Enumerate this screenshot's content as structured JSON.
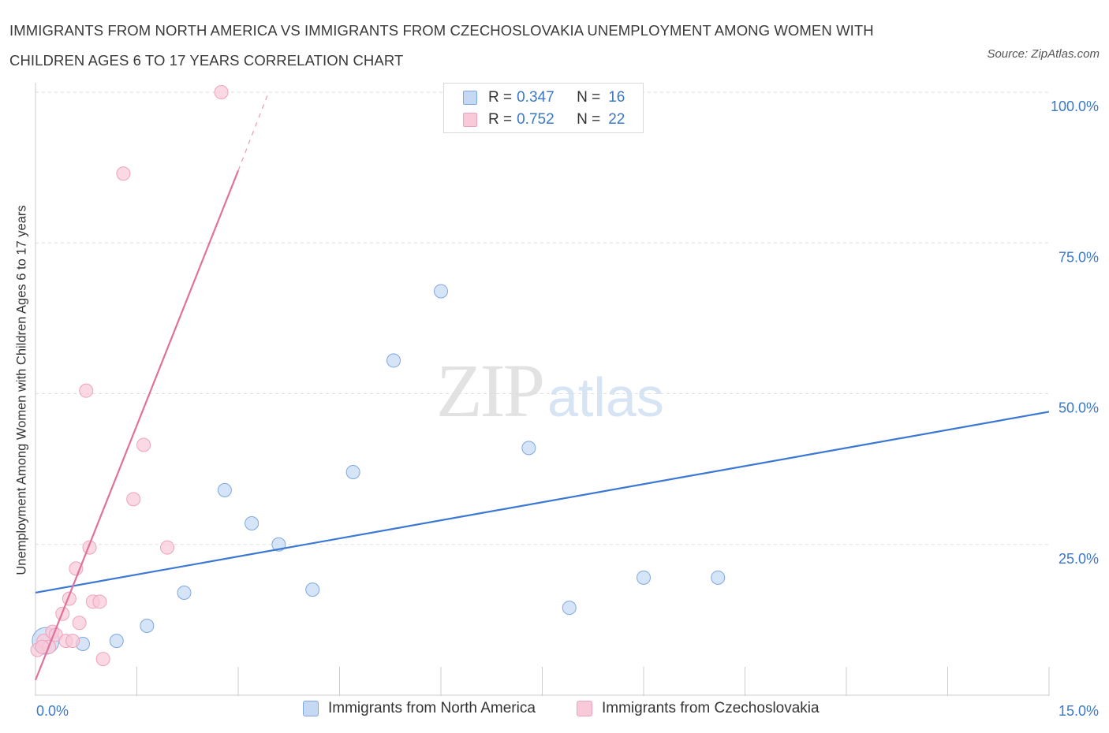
{
  "title": "IMMIGRANTS FROM NORTH AMERICA VS IMMIGRANTS FROM CZECHOSLOVAKIA UNEMPLOYMENT AMONG WOMEN WITH CHILDREN AGES 6 TO 17 YEARS CORRELATION CHART",
  "source": "Source: ZipAtlas.com",
  "watermark": {
    "zip": "ZIP",
    "atlas": "atlas"
  },
  "colors": {
    "blue_fill": "#c5d9f5",
    "blue_stroke": "#7ea8df",
    "blue_line": "#3b78d4",
    "pink_fill": "#f8c9d8",
    "pink_stroke": "#eea3bb",
    "pink_line": "#e0719b",
    "grid": "#dddddd",
    "tick_label": "#3a78c9"
  },
  "legend_top": [
    {
      "r_label": "R =",
      "r_value": "0.347",
      "n_label": "N =",
      "n_value": "16"
    },
    {
      "r_label": "R =",
      "r_value": "0.752",
      "n_label": "N =",
      "n_value": "22"
    }
  ],
  "chart_data": {
    "type": "scatter",
    "xlabel": "",
    "ylabel": "Unemployment Among Women with Children Ages 6 to 17 years",
    "xlim": [
      0,
      15
    ],
    "ylim": [
      0,
      100
    ],
    "x_tick_labels": [
      "0.0%",
      "15.0%"
    ],
    "y_tick_labels": [
      "100.0%",
      "75.0%",
      "50.0%",
      "25.0%"
    ],
    "y_ticks": [
      100,
      75,
      50,
      25
    ],
    "grid": true,
    "legend_position": "bottom",
    "series": [
      {
        "name": "Immigrants from North America",
        "color": "blue",
        "points": [
          [
            0.15,
            9.0
          ],
          [
            0.7,
            8.5
          ],
          [
            1.2,
            9.0
          ],
          [
            1.65,
            11.5
          ],
          [
            2.2,
            17.0
          ],
          [
            2.8,
            34.0
          ],
          [
            3.2,
            28.5
          ],
          [
            3.6,
            25.0
          ],
          [
            4.1,
            17.5
          ],
          [
            4.7,
            37.0
          ],
          [
            5.3,
            55.5
          ],
          [
            6.0,
            67.0
          ],
          [
            7.3,
            41.0
          ],
          [
            7.9,
            14.5
          ],
          [
            9.0,
            19.5
          ],
          [
            10.1,
            19.5
          ]
        ],
        "trend": {
          "x": [
            0,
            15
          ],
          "y": [
            17.0,
            47.0
          ]
        }
      },
      {
        "name": "Immigrants from Czechoslovakia",
        "color": "pink",
        "points": [
          [
            0.03,
            7.5
          ],
          [
            0.12,
            9.0
          ],
          [
            0.2,
            8.0
          ],
          [
            0.25,
            10.5
          ],
          [
            0.3,
            10.0
          ],
          [
            0.4,
            13.5
          ],
          [
            0.45,
            9.0
          ],
          [
            0.5,
            16.0
          ],
          [
            0.55,
            9.0
          ],
          [
            0.6,
            21.0
          ],
          [
            0.65,
            12.0
          ],
          [
            0.75,
            50.5
          ],
          [
            0.8,
            24.5
          ],
          [
            0.85,
            15.5
          ],
          [
            0.95,
            15.5
          ],
          [
            1.0,
            6.0
          ],
          [
            1.3,
            86.5
          ],
          [
            1.45,
            32.5
          ],
          [
            1.6,
            41.5
          ],
          [
            1.95,
            24.5
          ],
          [
            2.75,
            100.0
          ],
          [
            0.1,
            8.0
          ]
        ],
        "trend": {
          "x": [
            0,
            3.0
          ],
          "y": [
            2.5,
            87.0
          ],
          "dashed_to": {
            "x": 3.45,
            "y": 100.0
          }
        }
      }
    ]
  }
}
